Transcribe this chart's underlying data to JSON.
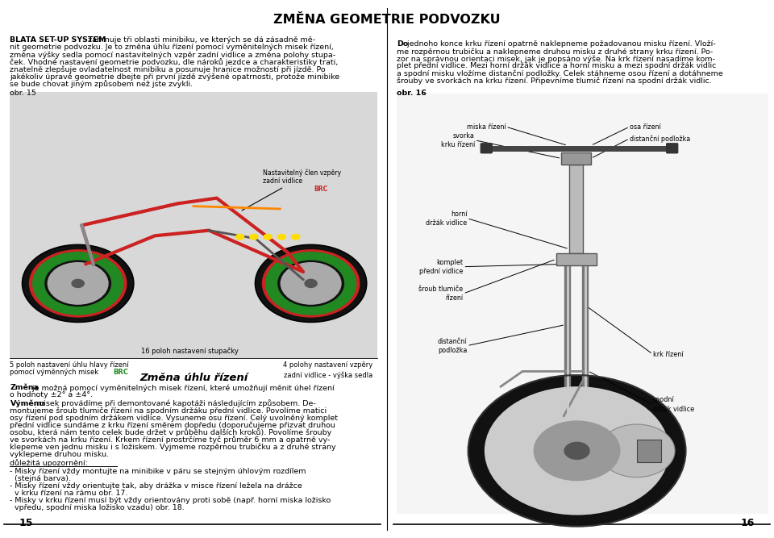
{
  "title": "ZMĚNA GEOMETRIE PODVOZKU",
  "background_color": "#ffffff",
  "text_color": "#000000",
  "title_fontsize": 11.5,
  "body_fontsize": 6.8,
  "section_title_fontsize": 9.5,
  "caption_fontsize": 6.0,
  "label_fontsize": 5.8,
  "page_num_fontsize": 9,
  "obr15_label": "obr. 15",
  "caption_nastavitelny": "Nastavitelný člen vzpěry\nzadní vidlice",
  "caption_16poloh": "16 poloh nastavení stupačky",
  "caption_5poloh_line1": "5 poloh nastavení úhlu hlavy řízení",
  "caption_5poloh_line2": "pomocí výměnných misek ",
  "caption_5poloh_brc": "BRC",
  "caption_4polohy_line1": "4 polohy nastavení vzpěry",
  "caption_4polohy_line2": "zadní vidlice - výška sedla",
  "section_title_zmena": "Změna úhlu řízení",
  "obr16_label": "obr. 16",
  "dulezita_upozorneni": "důležitá upozornění:",
  "page_num_left": "15",
  "page_num_right": "16",
  "intro_lines_left": [
    [
      "BLATA SET-UP SYSTEM",
      true,
      "zahrnuje tři oblasti minibiku, ve kterých se dá zásadně mě-"
    ],
    [
      "",
      false,
      "nit geometrie podvozku. Je to změna úhlu řízení pomocí vyměnitelných misek řízení,"
    ],
    [
      "",
      false,
      "změna výšky sedla pomocí nastavitelných vzpěr zadní vidlice a změna polohy stupa-"
    ],
    [
      "",
      false,
      "ček. Vhodné nastavení geometrie podvozku, dle nároků jezdce a charakteristiky trati,"
    ],
    [
      "",
      false,
      "znatelně zlepšuje ovladatelnost minibiku a posunuje hranice možností při jízdě. Po"
    ],
    [
      "",
      false,
      "jakékoliv úpravě geometrie dbejte při první jízdě zvýšené opatrnosti, protože minibike"
    ],
    [
      "",
      false,
      "se bude chovat jiným způsobem než jste zvykli."
    ]
  ],
  "zmena_lines1": [
    [
      "Změna",
      true,
      " je možná pomocí vyměnitelných misek řízení, které umožňují měnit úhel řízení"
    ],
    [
      "",
      false,
      "o hodnoty ±2° a ±4°."
    ]
  ],
  "zmena_lines2": [
    [
      "Výměnu",
      true,
      " misek provádíme při demontované kapotáži následujícím způsobem. De-"
    ],
    [
      "",
      false,
      "montujeme šroub tlumiče řízení na spodním držáku přední vidlice. Povolíme matici"
    ],
    [
      "",
      false,
      "osy řízení pod spodním držákem vidlice. Vysuneme osu řízení. Celý uvolněný komplet"
    ],
    [
      "",
      false,
      "přední vidlice sundáme z krku řízení směrem dopředu (doporučujeme přizvat druhou"
    ],
    [
      "",
      false,
      "osobu, která nám tento celek bude držet v průběhu dalších kroků). Povolíme šrouby"
    ],
    [
      "",
      false,
      "ve svorkách na krku řízení. Krkem řízení prostrčíme tyč průměr 6 mm a opatrně vy-"
    ],
    [
      "",
      false,
      "klepeme ven jednu misku i s ložiskem. Vyjmeme rozpěrnou trubičku a z druhé strany"
    ],
    [
      "",
      false,
      "vyklepeme druhou misku."
    ]
  ],
  "bullet_lines": [
    "- Misky řízení vždy montujte na minibike v páru se stejným úhlovým rozdílem",
    "  (stejná barva).",
    "- Misky řízení vždy orientujte tak, aby drážka v misce řízení ležela na drážce",
    "  v krku řízení na rámu obr. 17.",
    "- Misky v krku řízení musí být vždy orientovány proti sobě (např. horní miska ložisko",
    "  vpředu, spodní miska ložisko vzadu) obr. 18."
  ],
  "right_intro_lines": [
    [
      "Do",
      true,
      " jednoho konce krku řízení opatrně naklepneme požadovanou misku řízení. Vloží-"
    ],
    [
      "",
      false,
      "me rozpěrnou trubičku a naklepneme druhou misku z druhé strany krku řízení. Po-"
    ],
    [
      "",
      false,
      "zor na správnou orientaci misek, jak je popsáno výše. Na krk řízení nasadíme kom-"
    ],
    [
      "",
      false,
      "plet přední vidlice. Mezi horní držák vidlice a horní misku a mezi spodní držák vidlic"
    ],
    [
      "",
      false,
      "a spodní misku vložíme distanční podložky. Celek stáhneme osou řízení a dotáhneme"
    ],
    [
      "",
      false,
      "šrouby ve svorkách na krku řízení. Připevníme tlumič řízení na spodní držák vidlic."
    ]
  ]
}
